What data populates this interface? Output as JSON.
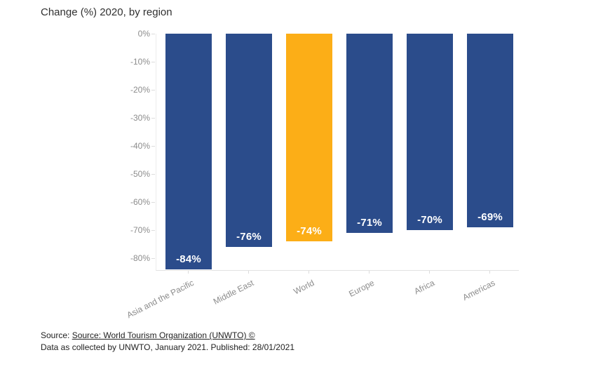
{
  "title": "Change (%) 2020, by region",
  "chart_data": {
    "type": "bar",
    "title": "Change (%) 2020, by region",
    "categories": [
      "Asia and the Pacific",
      "Middle East",
      "World",
      "Europe",
      "Africa",
      "Americas"
    ],
    "values": [
      -84,
      -76,
      -74,
      -71,
      -70,
      -69
    ],
    "value_labels": [
      "-84%",
      "-76%",
      "-74%",
      "-71%",
      "-70%",
      "-69%"
    ],
    "highlight_category": "World",
    "xlabel": "",
    "ylabel": "",
    "ylim": [
      -84.5,
      0
    ],
    "y_tick_labels": [
      "0%",
      "-10%",
      "-20%",
      "-30%",
      "-40%",
      "-50%",
      "-60%",
      "-70%",
      "-80%"
    ],
    "grid": false,
    "legend": "none",
    "bar_orientation": "vertical-negative"
  },
  "colors": {
    "bar": "#2b4c8b",
    "highlight": "#fcae17",
    "axis_line": "#e8e8e8",
    "tick_mark": "#dcdcdc",
    "tick_label": "#8c8c8c",
    "value_label": "#ffffff",
    "title_text": "#303030"
  },
  "footer": {
    "source_prefix": "Source: ",
    "source_link": "Source: World Tourism Organization (UNWTO) ©",
    "data_note": "Data as collected by UNWTO, January 2021. Published: 28/01/2021"
  }
}
